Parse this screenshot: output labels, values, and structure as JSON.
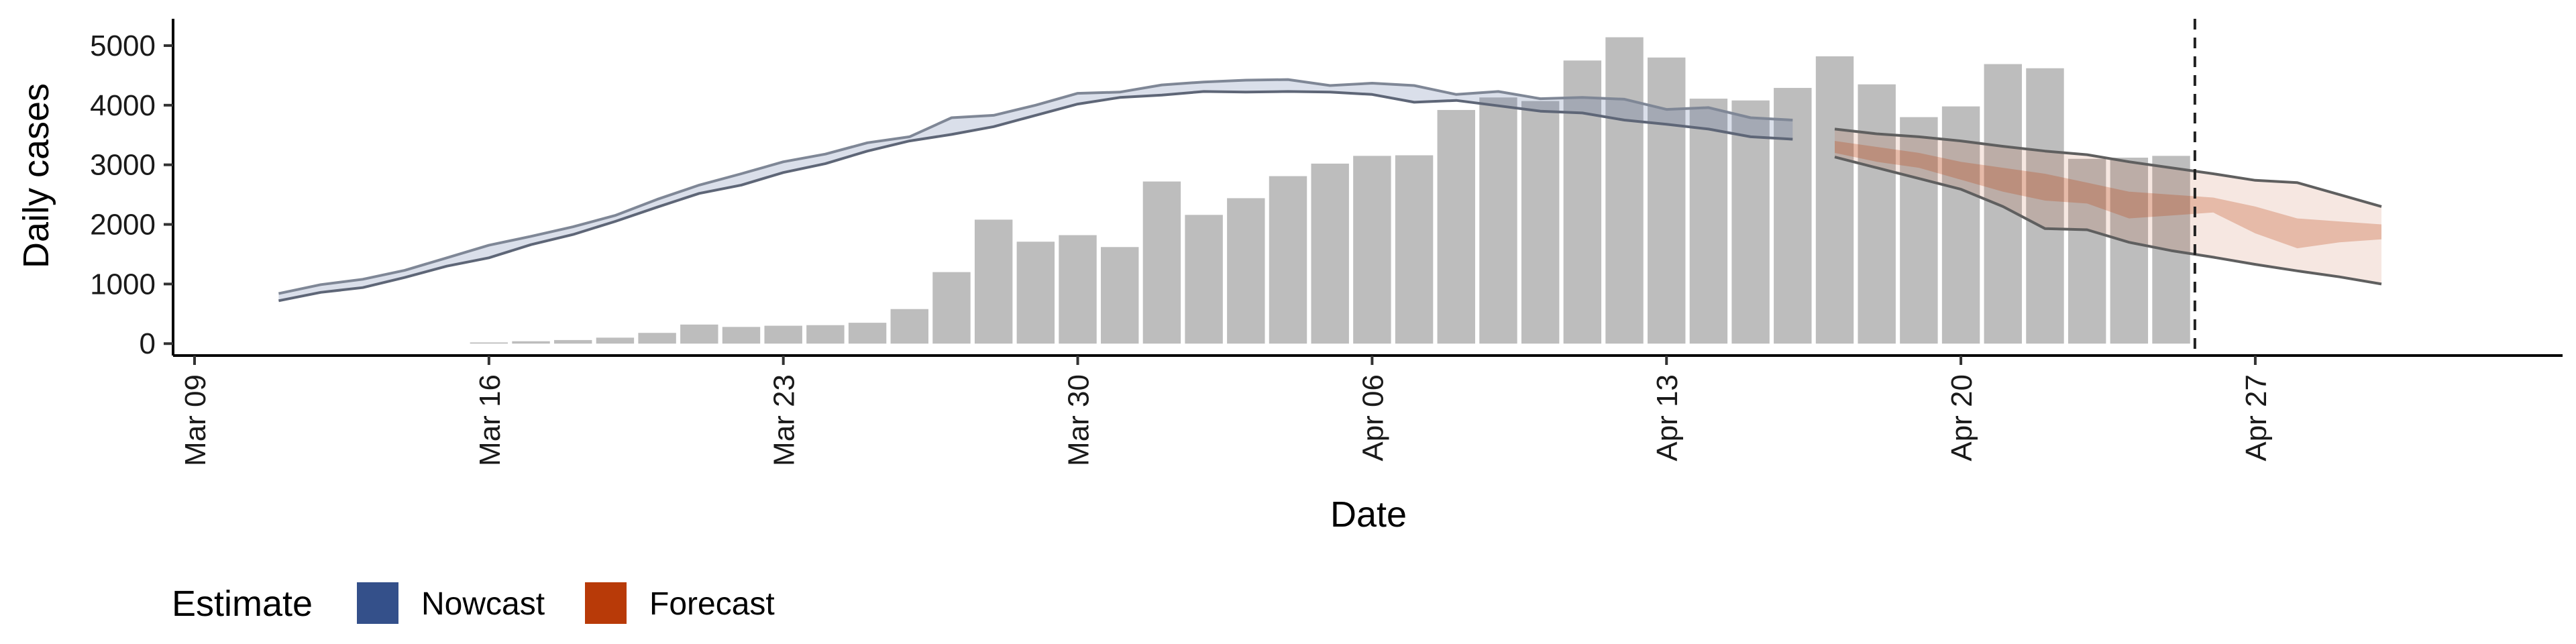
{
  "chart_data": {
    "type": "bar",
    "title": "",
    "xlabel": "Date",
    "ylabel": "Daily cases",
    "x_ticks": [
      "Mar 09",
      "Mar 16",
      "Mar 23",
      "Mar 30",
      "Apr 06",
      "Apr 13",
      "Apr 20",
      "Apr 27"
    ],
    "y_ticks": [
      "0",
      "1000",
      "2000",
      "3000",
      "4000",
      "5000"
    ],
    "ylim": [
      -200,
      5450
    ],
    "xlim": [
      "2020-03-09",
      "2020-04-30"
    ],
    "grid": false,
    "legend_placement": "bottom-left",
    "legend": {
      "title": "Estimate",
      "items": [
        {
          "label": "Nowcast",
          "color": "#34508a"
        },
        {
          "label": "Forecast",
          "color": "#b83a08"
        }
      ]
    },
    "bars": {
      "color": "#bdbdbd",
      "dates": [
        "2020-03-16",
        "2020-03-17",
        "2020-03-18",
        "2020-03-19",
        "2020-03-20",
        "2020-03-21",
        "2020-03-22",
        "2020-03-23",
        "2020-03-24",
        "2020-03-25",
        "2020-03-26",
        "2020-03-27",
        "2020-03-28",
        "2020-03-29",
        "2020-03-30",
        "2020-03-31",
        "2020-04-01",
        "2020-04-02",
        "2020-04-03",
        "2020-04-04",
        "2020-04-05",
        "2020-04-06",
        "2020-04-07",
        "2020-04-08",
        "2020-04-09",
        "2020-04-10",
        "2020-04-11",
        "2020-04-12",
        "2020-04-13",
        "2020-04-14",
        "2020-04-15",
        "2020-04-16",
        "2020-04-17",
        "2020-04-18",
        "2020-04-19",
        "2020-04-20",
        "2020-04-21",
        "2020-04-22",
        "2020-04-23",
        "2020-04-24",
        "2020-04-25"
      ],
      "values": [
        20,
        40,
        60,
        100,
        180,
        320,
        280,
        300,
        310,
        350,
        580,
        1200,
        2080,
        1710,
        1820,
        1620,
        2720,
        2160,
        2440,
        2810,
        3020,
        3150,
        3160,
        3920,
        4130,
        4070,
        4750,
        5140,
        4800,
        4110,
        4080,
        4290,
        4820,
        4350,
        3800,
        3980,
        4690,
        4620,
        3100,
        3120,
        3150
      ]
    },
    "series": [
      {
        "name": "Nowcast",
        "dates": [
          "2020-03-11",
          "2020-03-12",
          "2020-03-13",
          "2020-03-14",
          "2020-03-15",
          "2020-03-16",
          "2020-03-17",
          "2020-03-18",
          "2020-03-19",
          "2020-03-20",
          "2020-03-21",
          "2020-03-22",
          "2020-03-23",
          "2020-03-24",
          "2020-03-25",
          "2020-03-26",
          "2020-03-27",
          "2020-03-28",
          "2020-03-29",
          "2020-03-30",
          "2020-03-31",
          "2020-04-01",
          "2020-04-02",
          "2020-04-03",
          "2020-04-04",
          "2020-04-05",
          "2020-04-06",
          "2020-04-07",
          "2020-04-08",
          "2020-04-09",
          "2020-04-10",
          "2020-04-11",
          "2020-04-12",
          "2020-04-13",
          "2020-04-14",
          "2020-04-15",
          "2020-04-16"
        ],
        "upper": [
          840,
          990,
          1080,
          1230,
          1440,
          1650,
          1800,
          1960,
          2150,
          2420,
          2660,
          2850,
          3050,
          3180,
          3370,
          3470,
          3790,
          3830,
          4000,
          4200,
          4220,
          4340,
          4390,
          4420,
          4430,
          4330,
          4370,
          4330,
          4180,
          4230,
          4110,
          4130,
          4100,
          3930,
          3960,
          3790,
          3750
        ],
        "lower": [
          720,
          860,
          940,
          1110,
          1300,
          1440,
          1660,
          1830,
          2050,
          2290,
          2520,
          2660,
          2870,
          3020,
          3230,
          3400,
          3510,
          3640,
          3830,
          4020,
          4130,
          4170,
          4230,
          4220,
          4230,
          4220,
          4180,
          4050,
          4080,
          3990,
          3900,
          3870,
          3750,
          3680,
          3600,
          3470,
          3430
        ],
        "color": "#34508a"
      },
      {
        "name": "Forecast",
        "dates": [
          "2020-04-17",
          "2020-04-18",
          "2020-04-19",
          "2020-04-20",
          "2020-04-21",
          "2020-04-22",
          "2020-04-23",
          "2020-04-24",
          "2020-04-25",
          "2020-04-26",
          "2020-04-27",
          "2020-04-28",
          "2020-04-29",
          "2020-04-30"
        ],
        "upper90": [
          3600,
          3520,
          3470,
          3400,
          3310,
          3230,
          3170,
          3050,
          2950,
          2850,
          2740,
          2700,
          2500,
          2300
        ],
        "lower90": [
          3130,
          2950,
          2770,
          2590,
          2300,
          1930,
          1910,
          1700,
          1560,
          1450,
          1330,
          1220,
          1120,
          1000
        ],
        "upper50": [
          3400,
          3300,
          3200,
          3050,
          2950,
          2850,
          2700,
          2550,
          2500,
          2450,
          2300,
          2100,
          2050,
          2000
        ],
        "lower50": [
          3200,
          3050,
          2950,
          2750,
          2550,
          2400,
          2350,
          2100,
          2150,
          2200,
          1850,
          1600,
          1700,
          1750
        ],
        "color": "#b83a08"
      }
    ],
    "reference_line": {
      "date": "2020-04-25",
      "style": "dashed"
    }
  }
}
